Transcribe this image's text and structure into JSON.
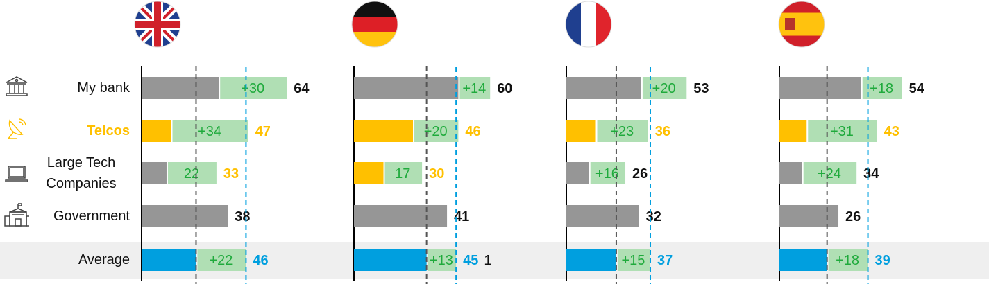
{
  "colors": {
    "gray": "#969696",
    "orange": "#ffc000",
    "blue": "#009fdf",
    "green_fill": "#b0dfb4",
    "green_text": "#1faa3c",
    "black": "#111111"
  },
  "categories": [
    {
      "label": "My bank",
      "icon": "bank-icon",
      "color": "#111111"
    },
    {
      "label": "Telcos",
      "icon": "satellite-dish-icon",
      "color": "#ffc000"
    },
    {
      "label": "Large Tech Companies",
      "icon": "laptop-icon",
      "color": "#111111"
    },
    {
      "label": "Government",
      "icon": "government-building-icon",
      "color": "#111111"
    },
    {
      "label": "Average",
      "icon": "",
      "color": "#111111"
    }
  ],
  "chart_data": {
    "type": "bar",
    "stacked": true,
    "categories": [
      "My bank",
      "Telcos",
      "Large Tech Companies",
      "Government",
      "Average"
    ],
    "panels": [
      {
        "country": "UK",
        "flag": "uk-flag-icon",
        "bars": [
          {
            "base": 34,
            "inc": 30,
            "inc_label": "+30",
            "total": "64",
            "base_color": "gray",
            "total_color": "black"
          },
          {
            "base": 13,
            "inc": 34,
            "inc_label": "+34",
            "total": "47",
            "base_color": "orange",
            "total_color": "orange"
          },
          {
            "base": 11,
            "inc": 22,
            "inc_label": "22",
            "total": "33",
            "base_color": "gray",
            "total_color": "orange"
          },
          {
            "base": 38,
            "inc": 0,
            "inc_label": "",
            "total": "38",
            "base_color": "gray",
            "total_color": "black"
          },
          {
            "base": 24,
            "inc": 22,
            "inc_label": "+22",
            "total": "46",
            "base_color": "blue",
            "total_color": "blue"
          }
        ],
        "ref_lines": [
          24,
          46
        ]
      },
      {
        "country": "Germany",
        "flag": "germany-flag-icon",
        "bars": [
          {
            "base": 46,
            "inc": 14,
            "inc_label": "+14",
            "total": "60",
            "base_color": "gray",
            "total_color": "black"
          },
          {
            "base": 26,
            "inc": 20,
            "inc_label": "+20",
            "total": "46",
            "base_color": "orange",
            "total_color": "orange"
          },
          {
            "base": 13,
            "inc": 17,
            "inc_label": "17",
            "total": "30",
            "base_color": "orange",
            "total_color": "orange"
          },
          {
            "base": 41,
            "inc": 0,
            "inc_label": "",
            "total": "41",
            "base_color": "gray",
            "total_color": "black"
          },
          {
            "base": 32,
            "inc": 13,
            "inc_label": "+13",
            "total": "45",
            "extra": "1",
            "base_color": "blue",
            "total_color": "blue"
          }
        ],
        "ref_lines": [
          32,
          45
        ]
      },
      {
        "country": "France",
        "flag": "france-flag-icon",
        "bars": [
          {
            "base": 33,
            "inc": 20,
            "inc_label": "+20",
            "total": "53",
            "base_color": "gray",
            "total_color": "black"
          },
          {
            "base": 13,
            "inc": 23,
            "inc_label": "+23",
            "total": "36",
            "base_color": "orange",
            "total_color": "orange"
          },
          {
            "base": 10,
            "inc": 16,
            "inc_label": "+16",
            "total": "26",
            "base_color": "gray",
            "total_color": "black"
          },
          {
            "base": 32,
            "inc": 0,
            "inc_label": "",
            "total": "32",
            "base_color": "gray",
            "total_color": "black"
          },
          {
            "base": 22,
            "inc": 15,
            "inc_label": "+15",
            "total": "37",
            "base_color": "blue",
            "total_color": "blue"
          }
        ],
        "ref_lines": [
          22,
          37
        ]
      },
      {
        "country": "Spain",
        "flag": "spain-flag-icon",
        "bars": [
          {
            "base": 36,
            "inc": 18,
            "inc_label": "+18",
            "total": "54",
            "base_color": "gray",
            "total_color": "black"
          },
          {
            "base": 12,
            "inc": 31,
            "inc_label": "+31",
            "total": "43",
            "base_color": "orange",
            "total_color": "orange"
          },
          {
            "base": 10,
            "inc": 24,
            "inc_label": "+24",
            "total": "34",
            "base_color": "gray",
            "total_color": "black"
          },
          {
            "base": 26,
            "inc": 0,
            "inc_label": "",
            "total": "26",
            "base_color": "gray",
            "total_color": "black"
          },
          {
            "base": 21,
            "inc": 18,
            "inc_label": "+18",
            "total": "39",
            "base_color": "blue",
            "total_color": "blue"
          }
        ],
        "ref_lines": [
          21,
          39
        ]
      }
    ]
  }
}
